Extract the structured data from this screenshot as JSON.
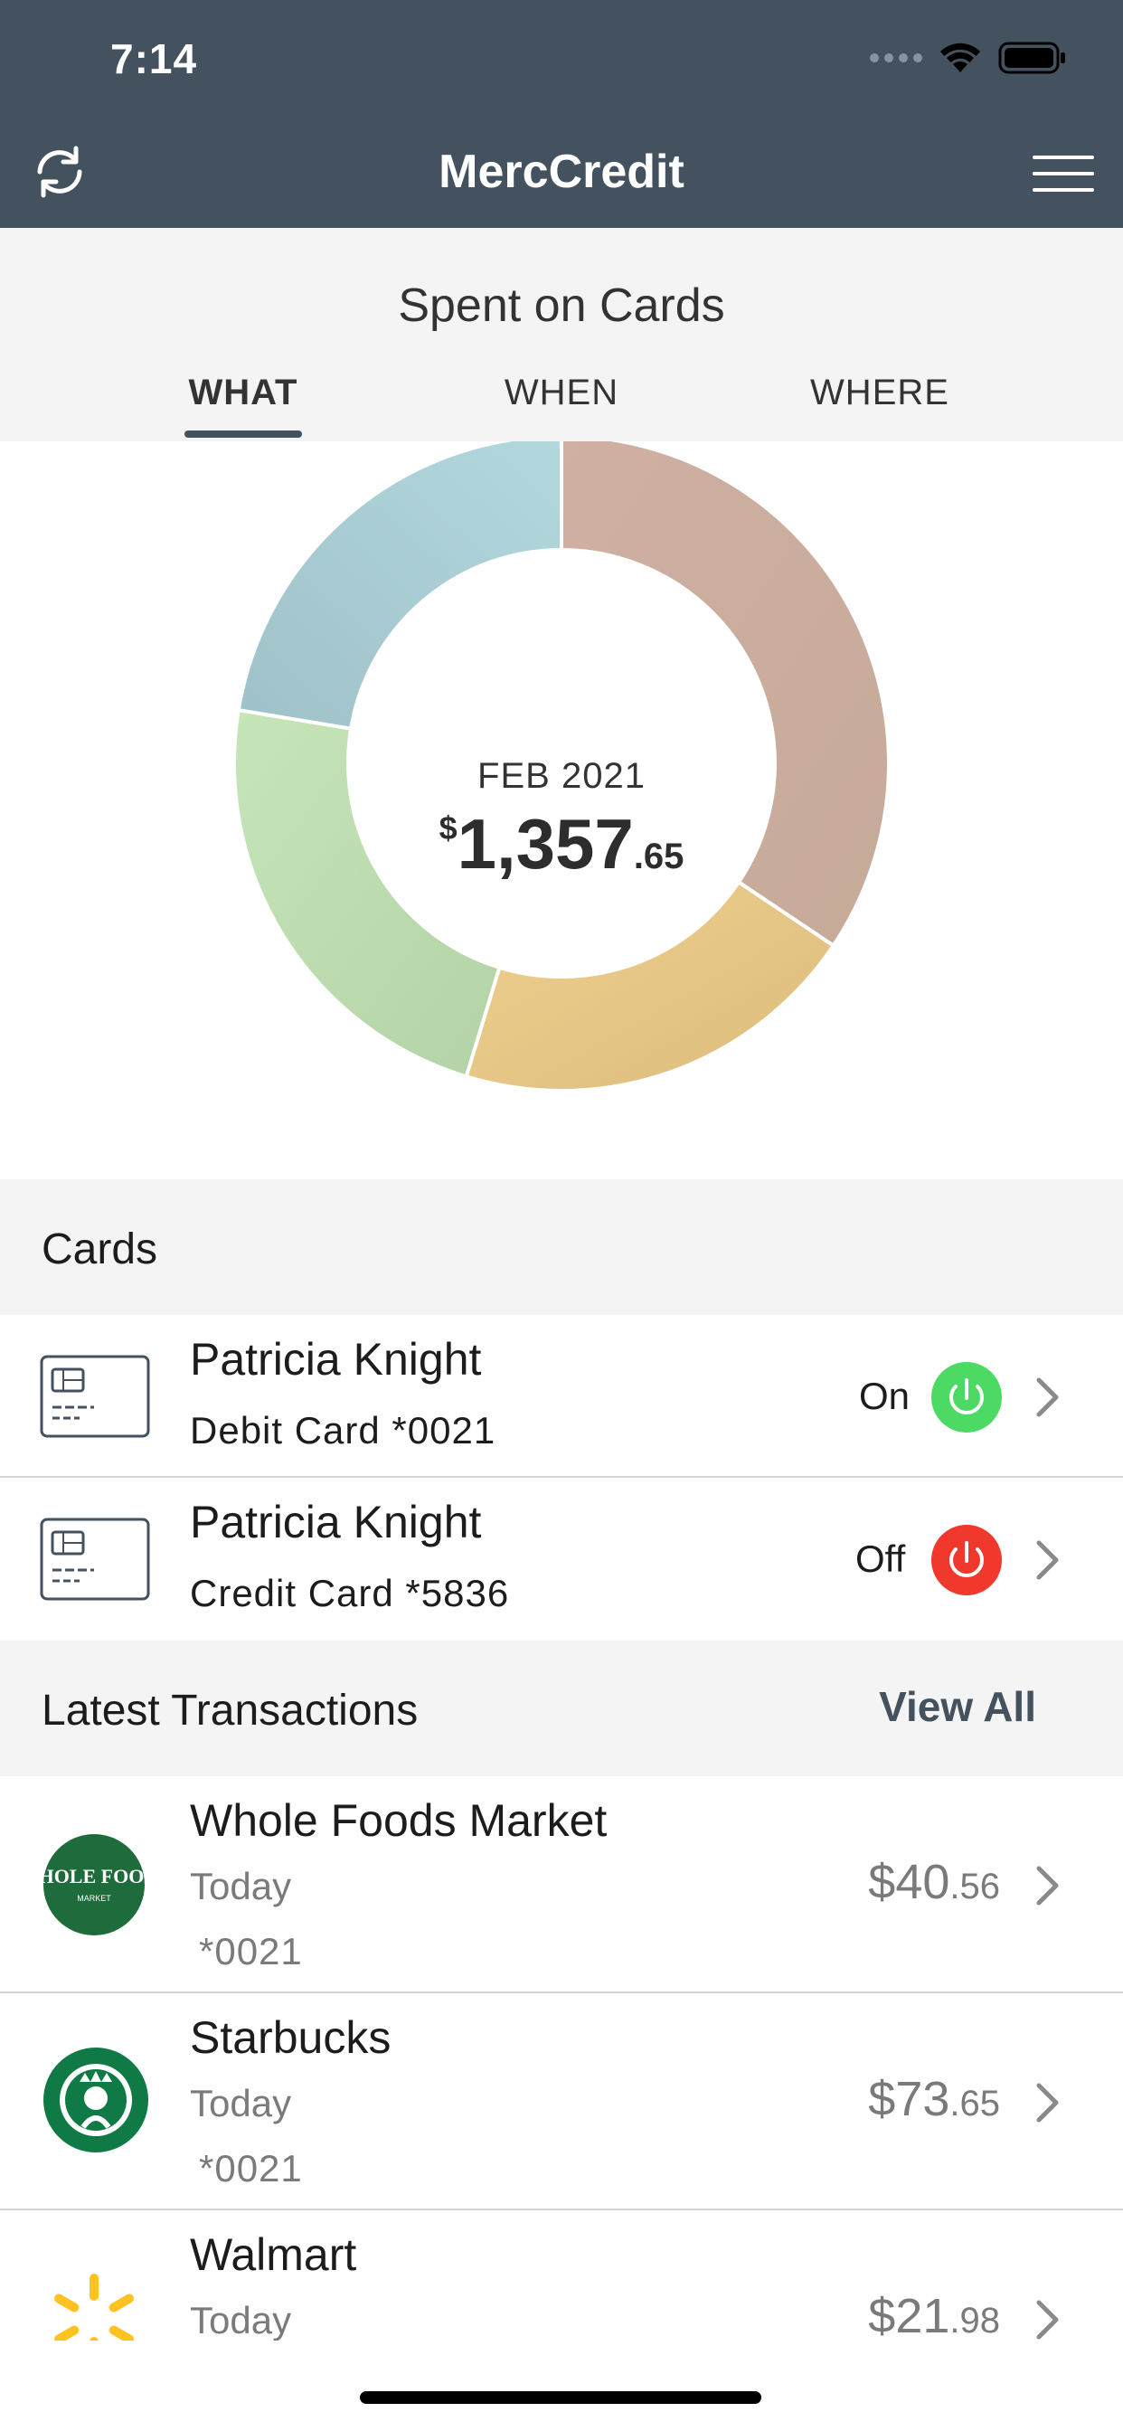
{
  "status_bar": {
    "time": "7:14"
  },
  "header": {
    "title": "MercCredit",
    "refresh_icon": "refresh-icon",
    "menu_icon": "hamburger-menu-icon"
  },
  "spent": {
    "title": "Spent on Cards",
    "tabs": [
      {
        "label": "WHAT",
        "active": true
      },
      {
        "label": "WHEN",
        "active": false
      },
      {
        "label": "WHERE",
        "active": false
      }
    ],
    "month": "FEB 2021",
    "amount_dollar": "$",
    "amount_whole": "1,357",
    "amount_cents": ".65"
  },
  "chart_data": {
    "type": "pie",
    "variant": "donut",
    "values": [
      0.344,
      0.203,
      0.229,
      0.224
    ],
    "colors": [
      "#c9ad9e",
      "#e9c98a",
      "#bcdcb0",
      "#a9cdd4"
    ]
  },
  "cards_section": {
    "title": "Cards",
    "items": [
      {
        "name": "Patricia Knight",
        "sub": "Debit Card *0021",
        "state": "On",
        "state_color": "#4cd964"
      },
      {
        "name": "Patricia Knight",
        "sub": "Credit Card *5836",
        "state": "Off",
        "state_color": "#f0382d"
      }
    ]
  },
  "transactions_section": {
    "title": "Latest Transactions",
    "view_all": "View All",
    "items": [
      {
        "merchant": "Whole Foods Market",
        "date": "Today",
        "card": "*0021",
        "amount_whole": "$40",
        "amount_cents": ".56",
        "logo": "whole-foods-logo",
        "logo_text": "WHOLE FOODS",
        "logo_subtext": "MARKET"
      },
      {
        "merchant": "Starbucks",
        "date": "Today",
        "card": "*0021",
        "amount_whole": "$73",
        "amount_cents": ".65",
        "logo": "starbucks-logo"
      },
      {
        "merchant": "Walmart",
        "date": "Today",
        "amount_whole": "$21",
        "amount_cents": ".98",
        "logo": "walmart-logo"
      }
    ]
  },
  "colors": {
    "header_bg": "#44525f",
    "section_bg": "#f4f4f4",
    "accent": "#44525f"
  }
}
